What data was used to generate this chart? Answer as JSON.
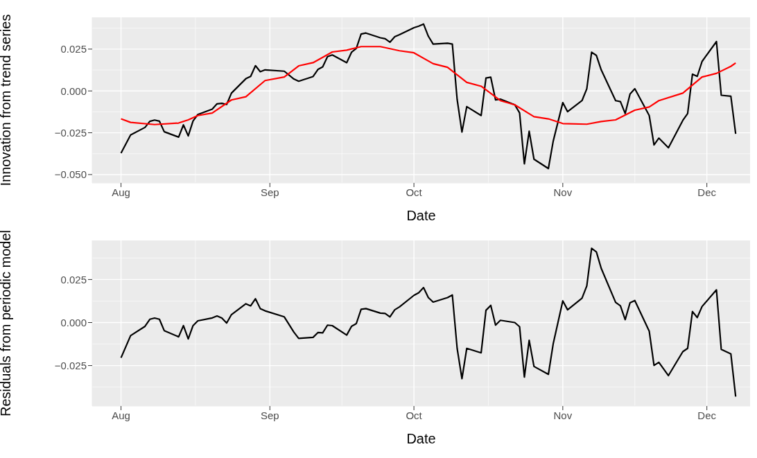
{
  "chart_data": [
    {
      "type": "line",
      "xlabel": "Date",
      "ylabel": "Innovation from trend series",
      "grid": true,
      "xlim": [
        "--07-26",
        "--12-10"
      ],
      "xticks": [
        {
          "value": "--08-01",
          "label": "Aug"
        },
        {
          "value": "--09-01",
          "label": "Sep"
        },
        {
          "value": "--10-01",
          "label": "Oct"
        },
        {
          "value": "--11-01",
          "label": "Nov"
        },
        {
          "value": "--12-01",
          "label": "Dec"
        }
      ],
      "ylim": [
        -0.055,
        0.044
      ],
      "yticks": [
        {
          "value": -0.05,
          "label": "−0.050"
        },
        {
          "value": -0.025,
          "label": "−0.025"
        },
        {
          "value": 0,
          "label": "0.000"
        },
        {
          "value": 0.025,
          "label": "0.025"
        }
      ],
      "x": [
        "--08-01",
        "--08-03",
        "--08-06",
        "--08-07",
        "--08-08",
        "--08-09",
        "--08-10",
        "--08-13",
        "--08-14",
        "--08-15",
        "--08-16",
        "--08-17",
        "--08-20",
        "--08-21",
        "--08-22",
        "--08-23",
        "--08-24",
        "--08-27",
        "--08-28",
        "--08-29",
        "--08-30",
        "--08-31",
        "--09-04",
        "--09-06",
        "--09-07",
        "--09-10",
        "--09-11",
        "--09-12",
        "--09-13",
        "--09-14",
        "--09-17",
        "--09-18",
        "--09-19",
        "--09-20",
        "--09-21",
        "--09-24",
        "--09-25",
        "--09-26",
        "--09-27",
        "--09-28",
        "--10-01",
        "--10-02",
        "--10-03",
        "--10-04",
        "--10-05",
        "--10-08",
        "--10-09",
        "--10-10",
        "--10-11",
        "--10-12",
        "--10-15",
        "--10-16",
        "--10-17",
        "--10-18",
        "--10-19",
        "--10-22",
        "--10-23",
        "--10-24",
        "--10-25",
        "--10-26",
        "--10-29",
        "--10-30",
        "--11-01",
        "--11-02",
        "--11-05",
        "--11-06",
        "--11-07",
        "--11-08",
        "--11-09",
        "--11-12",
        "--11-13",
        "--11-14",
        "--11-15",
        "--11-16",
        "--11-19",
        "--11-20",
        "--11-21",
        "--11-23",
        "--11-26",
        "--11-27",
        "--11-28",
        "--11-29",
        "--11-30",
        "--12-03",
        "--12-04",
        "--12-06",
        "--12-07"
      ],
      "series": [
        {
          "color": "#000000",
          "values": [
            -0.0372,
            -0.0263,
            -0.0218,
            -0.0182,
            -0.0174,
            -0.0181,
            -0.0244,
            -0.0276,
            -0.0203,
            -0.0269,
            -0.018,
            -0.0141,
            -0.0109,
            -0.0077,
            -0.0074,
            -0.0081,
            -0.0013,
            0.0073,
            0.0087,
            0.0151,
            0.0115,
            0.0126,
            0.0118,
            0.0071,
            0.0058,
            0.0086,
            0.0128,
            0.0144,
            0.0205,
            0.0215,
            0.0169,
            0.0231,
            0.0254,
            0.034,
            0.0346,
            0.0318,
            0.0312,
            0.0291,
            0.0324,
            0.0336,
            0.0378,
            0.0387,
            0.04,
            0.0327,
            0.028,
            0.0285,
            0.028,
            -0.0051,
            -0.0246,
            -0.0094,
            -0.0147,
            0.0077,
            0.0082,
            -0.0054,
            -0.0049,
            -0.0083,
            -0.0131,
            -0.0436,
            -0.0241,
            -0.0408,
            -0.0464,
            -0.0301,
            -0.007,
            -0.0124,
            -0.0058,
            0.0013,
            0.0231,
            0.0212,
            0.0126,
            -0.0058,
            -0.0064,
            -0.0135,
            -0.0019,
            0.0013,
            -0.0147,
            -0.0323,
            -0.0282,
            -0.034,
            -0.0176,
            -0.0135,
            0.01,
            0.0087,
            0.0176,
            0.0295,
            -0.0026,
            -0.0032,
            -0.0256
          ]
        },
        {
          "color": "#ff0000",
          "x": [
            "--08-01",
            "--08-03",
            "--08-08",
            "--08-13",
            "--08-15",
            "--08-17",
            "--08-20",
            "--08-24",
            "--08-27",
            "--08-31",
            "--09-04",
            "--09-07",
            "--09-10",
            "--09-14",
            "--09-17",
            "--09-20",
            "--09-24",
            "--09-28",
            "--10-01",
            "--10-05",
            "--10-08",
            "--10-12",
            "--10-15",
            "--10-19",
            "--10-22",
            "--10-26",
            "--10-29",
            "--11-01",
            "--11-06",
            "--11-09",
            "--11-12",
            "--11-16",
            "--11-19",
            "--11-21",
            "--11-26",
            "--11-30",
            "--12-03",
            "--12-06",
            "--12-07"
          ],
          "values": [
            -0.0167,
            -0.0188,
            -0.0201,
            -0.0192,
            -0.0173,
            -0.0147,
            -0.0132,
            -0.0054,
            -0.0035,
            0.0062,
            0.0083,
            0.015,
            0.0169,
            0.0233,
            0.0244,
            0.0265,
            0.0265,
            0.024,
            0.0228,
            0.0163,
            0.0141,
            0.0051,
            0.0028,
            -0.0058,
            -0.0083,
            -0.0154,
            -0.0167,
            -0.0195,
            -0.0199,
            -0.0183,
            -0.0173,
            -0.0115,
            -0.0096,
            -0.0058,
            -0.0013,
            0.0083,
            0.0105,
            0.0147,
            0.0167
          ]
        }
      ]
    },
    {
      "type": "line",
      "xlabel": "Date",
      "ylabel": "Residuals from periodic model",
      "grid": true,
      "xlim": [
        "--07-26",
        "--12-10"
      ],
      "xticks": [
        {
          "value": "--08-01",
          "label": "Aug"
        },
        {
          "value": "--09-01",
          "label": "Sep"
        },
        {
          "value": "--10-01",
          "label": "Oct"
        },
        {
          "value": "--11-01",
          "label": "Nov"
        },
        {
          "value": "--12-01",
          "label": "Dec"
        }
      ],
      "ylim": [
        -0.0485,
        0.0477
      ],
      "yticks": [
        {
          "value": -0.025,
          "label": "−0.025"
        },
        {
          "value": 0,
          "label": "0.000"
        },
        {
          "value": 0.025,
          "label": "0.025"
        }
      ],
      "x": [
        "--08-01",
        "--08-03",
        "--08-06",
        "--08-07",
        "--08-08",
        "--08-09",
        "--08-10",
        "--08-13",
        "--08-14",
        "--08-15",
        "--08-16",
        "--08-17",
        "--08-20",
        "--08-21",
        "--08-22",
        "--08-23",
        "--08-24",
        "--08-27",
        "--08-28",
        "--08-29",
        "--08-30",
        "--08-31",
        "--09-04",
        "--09-06",
        "--09-07",
        "--09-10",
        "--09-11",
        "--09-12",
        "--09-13",
        "--09-14",
        "--09-17",
        "--09-18",
        "--09-19",
        "--09-20",
        "--09-21",
        "--09-24",
        "--09-25",
        "--09-26",
        "--09-27",
        "--09-28",
        "--10-01",
        "--10-02",
        "--10-03",
        "--10-04",
        "--10-05",
        "--10-08",
        "--10-09",
        "--10-10",
        "--10-11",
        "--10-12",
        "--10-15",
        "--10-16",
        "--10-17",
        "--10-18",
        "--10-19",
        "--10-22",
        "--10-23",
        "--10-24",
        "--10-25",
        "--10-26",
        "--10-29",
        "--10-30",
        "--11-01",
        "--11-02",
        "--11-05",
        "--11-06",
        "--11-07",
        "--11-08",
        "--11-09",
        "--11-12",
        "--11-13",
        "--11-14",
        "--11-15",
        "--11-16",
        "--11-19",
        "--11-20",
        "--11-21",
        "--11-23",
        "--11-26",
        "--11-27",
        "--11-28",
        "--11-29",
        "--11-30",
        "--12-03",
        "--12-04",
        "--12-06",
        "--12-07"
      ],
      "series": [
        {
          "color": "#000000",
          "values": [
            -0.0205,
            -0.0076,
            -0.0022,
            0.0019,
            0.0026,
            0.0019,
            -0.0047,
            -0.0083,
            -0.0018,
            -0.0095,
            -0.0018,
            0.001,
            0.0027,
            0.0038,
            0.0026,
            -0.0003,
            0.0046,
            0.0109,
            0.0097,
            0.0138,
            0.0081,
            0.0068,
            0.0033,
            -0.0056,
            -0.0092,
            -0.0086,
            -0.0058,
            -0.006,
            -0.0015,
            -0.0018,
            -0.0073,
            -0.0022,
            -0.0006,
            0.0077,
            0.0081,
            0.0055,
            0.0053,
            0.0033,
            0.0074,
            0.0091,
            0.0158,
            0.0173,
            0.0203,
            0.0145,
            0.0119,
            0.0145,
            0.016,
            -0.015,
            -0.0326,
            -0.015,
            -0.0176,
            0.0071,
            0.01,
            -0.0015,
            0.0013,
            0,
            -0.0024,
            -0.0317,
            -0.0103,
            -0.0255,
            -0.0301,
            -0.0124,
            0.0126,
            0.0074,
            0.0141,
            0.0213,
            0.0431,
            0.041,
            0.0315,
            0.0117,
            0.0097,
            0.0017,
            0.0115,
            0.0128,
            -0.005,
            -0.0249,
            -0.0231,
            -0.0308,
            -0.0169,
            -0.015,
            0.0064,
            0.0029,
            0.0093,
            0.019,
            -0.0156,
            -0.0182,
            -0.043
          ]
        }
      ]
    }
  ]
}
